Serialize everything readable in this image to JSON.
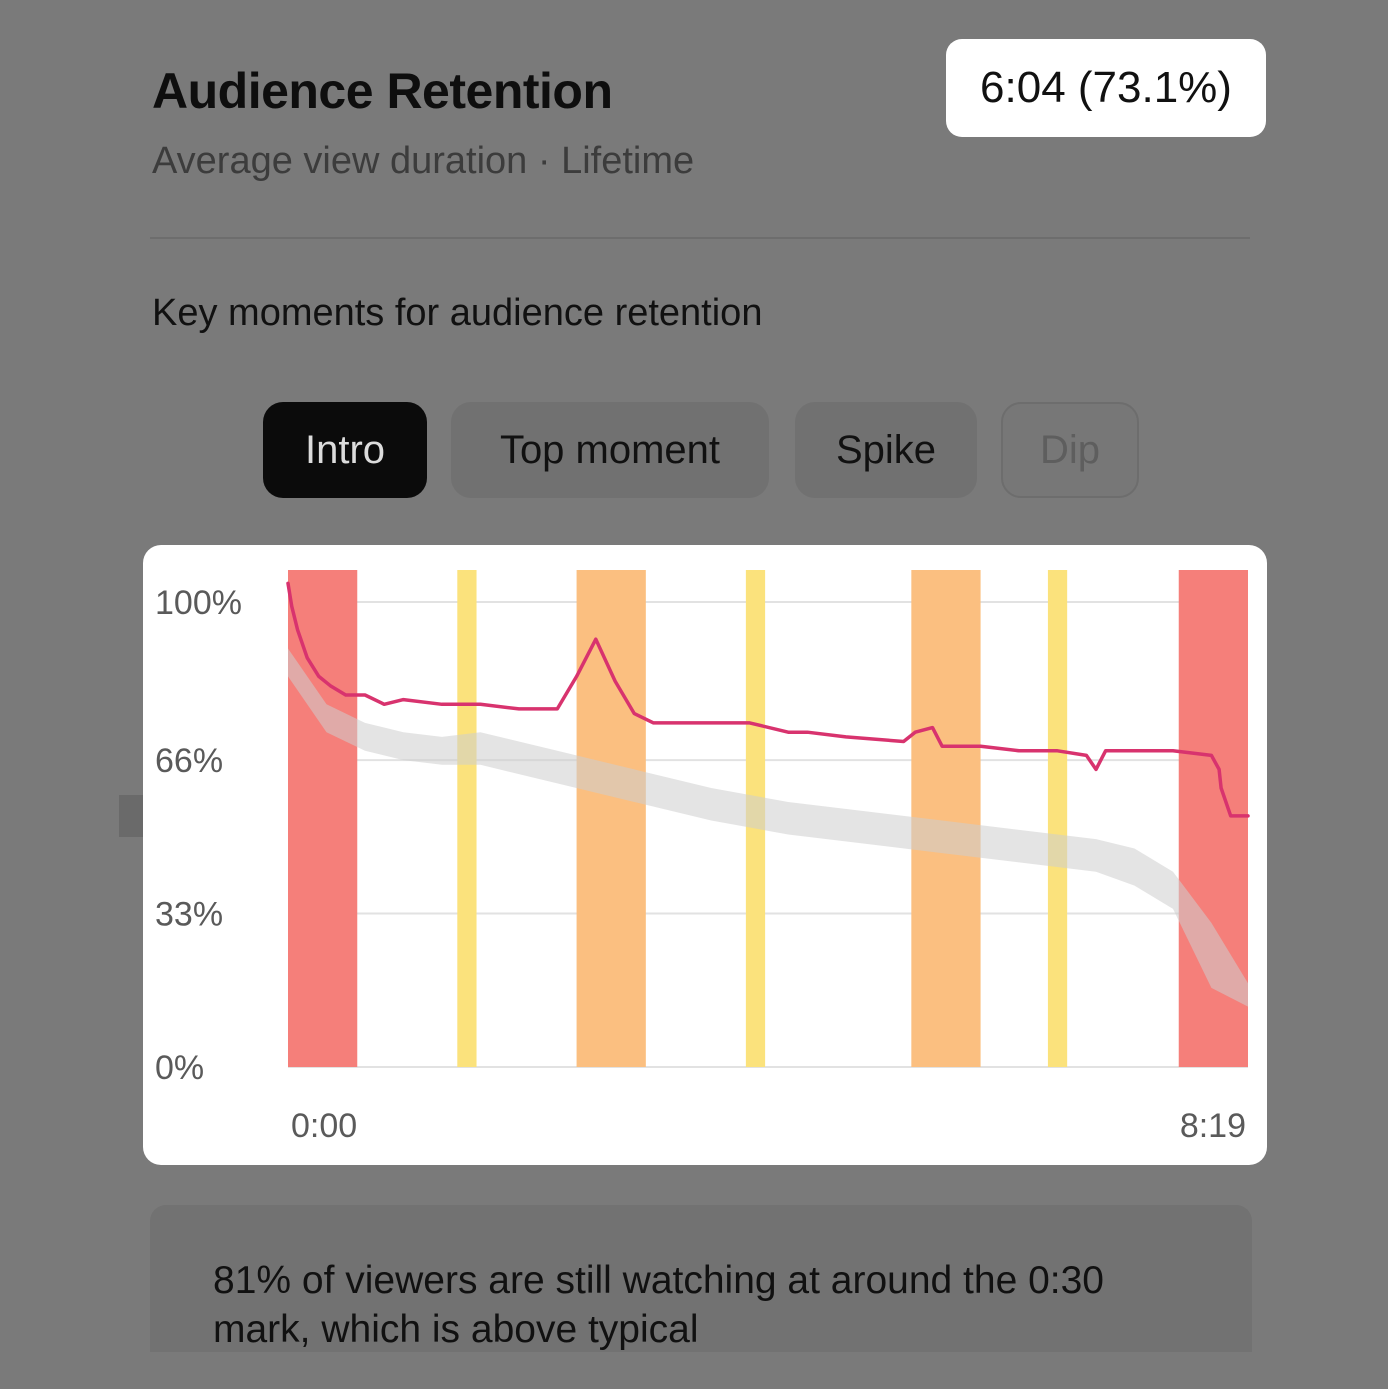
{
  "header": {
    "title": "Audience Retention",
    "subtitle": "Average view duration · Lifetime",
    "summary_value": "6:04 (73.1%)"
  },
  "section": {
    "heading": "Key moments for audience retention"
  },
  "tabs": [
    {
      "label": "Intro",
      "state": "selected"
    },
    {
      "label": "Top moment",
      "state": "normal"
    },
    {
      "label": "Spike",
      "state": "normal"
    },
    {
      "label": "Dip",
      "state": "disabled"
    }
  ],
  "insight": {
    "text": "81% of viewers are still watching at around the 0:30 mark, which is above typical"
  },
  "chart_data": {
    "type": "line",
    "x_unit": "seconds",
    "xlim": [
      0,
      499
    ],
    "ylim": [
      0,
      100
    ],
    "y_ticks": [
      {
        "value": 100,
        "label": "100%"
      },
      {
        "value": 66,
        "label": "66%"
      },
      {
        "value": 33,
        "label": "33%"
      },
      {
        "value": 0,
        "label": "0%"
      }
    ],
    "x_tick_labels": [
      {
        "value": 0,
        "label": "0:00"
      },
      {
        "value": 499,
        "label": "8:19"
      }
    ],
    "grid": true,
    "colors": {
      "retention_line": "#d8336e",
      "typical_band": "#e4e4e4",
      "intro_marker": "#f57f7a",
      "top_moment_marker": "#fbbf80",
      "spike_marker": "#fbe27c"
    },
    "series": [
      {
        "key": "retention",
        "x": [
          0,
          2,
          5,
          10,
          16,
          22,
          30,
          40,
          50,
          60,
          80,
          100,
          120,
          140,
          150,
          160,
          170,
          180,
          190,
          200,
          220,
          240,
          260,
          270,
          290,
          320,
          326,
          335,
          340,
          345,
          360,
          380,
          390,
          400,
          415,
          420,
          425,
          430,
          440,
          460,
          480,
          484,
          485,
          490,
          499
        ],
        "values": [
          104,
          99,
          94,
          88,
          84,
          82,
          80,
          80,
          78,
          79,
          78,
          78,
          77,
          77,
          84,
          92,
          83,
          76,
          74,
          74,
          74,
          74,
          72,
          72,
          71,
          70,
          72,
          73,
          69,
          69,
          69,
          68,
          68,
          68,
          67,
          64,
          68,
          68,
          68,
          68,
          67,
          64,
          60,
          54,
          54
        ]
      },
      {
        "key": "typical_upper",
        "x": [
          0,
          20,
          40,
          60,
          80,
          100,
          140,
          180,
          220,
          260,
          300,
          340,
          380,
          420,
          440,
          460,
          480,
          499
        ],
        "values": [
          90,
          78,
          74,
          72,
          71,
          72,
          68,
          64,
          60,
          57,
          55,
          53,
          51,
          49,
          47,
          42,
          31,
          18
        ]
      },
      {
        "key": "typical_lower",
        "x": [
          0,
          20,
          40,
          60,
          80,
          100,
          140,
          180,
          220,
          260,
          300,
          340,
          380,
          420,
          440,
          460,
          480,
          499
        ],
        "values": [
          84,
          72,
          68,
          66,
          65,
          65,
          61,
          57,
          53,
          50,
          48,
          46,
          44,
          42,
          39,
          34,
          17,
          13
        ]
      }
    ],
    "moment_markers": [
      {
        "type": "intro",
        "start": 0,
        "end": 36
      },
      {
        "type": "spike",
        "start": 88,
        "end": 98
      },
      {
        "type": "top_moment",
        "start": 150,
        "end": 186
      },
      {
        "type": "spike",
        "start": 238,
        "end": 248
      },
      {
        "type": "top_moment",
        "start": 324,
        "end": 360
      },
      {
        "type": "spike",
        "start": 395,
        "end": 405
      },
      {
        "type": "intro",
        "start": 463,
        "end": 499
      }
    ]
  }
}
